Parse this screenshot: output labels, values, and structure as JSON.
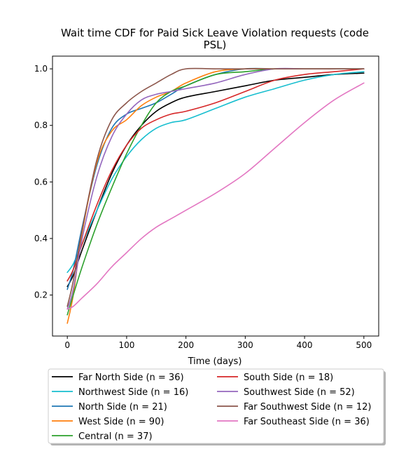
{
  "chart_data": {
    "type": "line",
    "title_line1": "Wait time CDF for Paid Sick Leave Violation  requests (code",
    "title_line2": "PSL)",
    "xlabel": "Time (days)",
    "ylabel": "",
    "xlim": [
      -25,
      525
    ],
    "ylim": [
      0.055,
      1.045
    ],
    "xticks": [
      0,
      100,
      200,
      300,
      400,
      500
    ],
    "yticks": [
      0.2,
      0.4,
      0.6,
      0.8,
      1.0
    ],
    "xtick_labels": [
      "0",
      "100",
      "200",
      "300",
      "400",
      "500"
    ],
    "ytick_labels": [
      "0.2",
      "0.4",
      "0.6",
      "0.8",
      "1.0"
    ],
    "grid": false,
    "legend_position": "bottom-center",
    "series": [
      {
        "name": "Far North Side (n = 36)",
        "color": "#000000",
        "x": [
          0,
          10,
          25,
          50,
          75,
          100,
          125,
          150,
          175,
          200,
          250,
          300,
          350,
          400,
          450,
          500
        ],
        "y": [
          0.23,
          0.27,
          0.36,
          0.5,
          0.63,
          0.73,
          0.8,
          0.85,
          0.88,
          0.9,
          0.92,
          0.94,
          0.96,
          0.97,
          0.98,
          0.985
        ]
      },
      {
        "name": "Northwest Side (n = 16)",
        "color": "#17becf",
        "x": [
          0,
          10,
          25,
          50,
          75,
          100,
          125,
          150,
          175,
          200,
          250,
          300,
          350,
          400,
          450,
          500
        ],
        "y": [
          0.28,
          0.31,
          0.38,
          0.5,
          0.61,
          0.69,
          0.75,
          0.79,
          0.81,
          0.82,
          0.86,
          0.9,
          0.93,
          0.96,
          0.98,
          0.99
        ]
      },
      {
        "name": "North Side (n = 21)",
        "color": "#1f77b4",
        "x": [
          0,
          10,
          25,
          50,
          75,
          100,
          125,
          150,
          175,
          200,
          250,
          300,
          350,
          400,
          450,
          500
        ],
        "y": [
          0.22,
          0.29,
          0.44,
          0.66,
          0.79,
          0.84,
          0.86,
          0.88,
          0.91,
          0.94,
          0.98,
          1.0,
          1.0,
          1.0,
          1.0,
          1.0
        ]
      },
      {
        "name": "West Side (n = 90)",
        "color": "#ff7f0e",
        "x": [
          0,
          10,
          25,
          50,
          75,
          100,
          125,
          150,
          175,
          200,
          250,
          300,
          350,
          400,
          450,
          500
        ],
        "y": [
          0.1,
          0.2,
          0.42,
          0.67,
          0.78,
          0.82,
          0.87,
          0.9,
          0.92,
          0.95,
          0.99,
          1.0,
          1.0,
          1.0,
          1.0,
          1.0
        ]
      },
      {
        "name": "Central (n = 37)",
        "color": "#2ca02c",
        "x": [
          0,
          10,
          25,
          50,
          75,
          100,
          125,
          150,
          175,
          200,
          250,
          300,
          350,
          400,
          450,
          500
        ],
        "y": [
          0.13,
          0.2,
          0.3,
          0.45,
          0.58,
          0.7,
          0.8,
          0.88,
          0.92,
          0.94,
          0.98,
          0.99,
          1.0,
          1.0,
          1.0,
          1.0
        ]
      },
      {
        "name": "South Side (n = 18)",
        "color": "#d62728",
        "x": [
          0,
          10,
          25,
          50,
          75,
          100,
          125,
          150,
          175,
          200,
          250,
          300,
          350,
          400,
          450,
          500
        ],
        "y": [
          0.25,
          0.29,
          0.38,
          0.52,
          0.64,
          0.73,
          0.79,
          0.82,
          0.84,
          0.85,
          0.88,
          0.92,
          0.96,
          0.98,
          0.99,
          1.0
        ]
      },
      {
        "name": "Southwest Side (n = 52)",
        "color": "#9467bd",
        "x": [
          0,
          10,
          25,
          50,
          75,
          100,
          125,
          150,
          175,
          200,
          250,
          300,
          350,
          400,
          450,
          500
        ],
        "y": [
          0.15,
          0.22,
          0.4,
          0.62,
          0.76,
          0.84,
          0.89,
          0.91,
          0.92,
          0.93,
          0.95,
          0.98,
          1.0,
          1.0,
          1.0,
          1.0
        ]
      },
      {
        "name": "Far Southwest Side (n = 12)",
        "color": "#8c564b",
        "x": [
          0,
          10,
          25,
          50,
          75,
          100,
          125,
          150,
          175,
          200,
          250,
          300,
          350,
          400,
          450,
          500
        ],
        "y": [
          0.16,
          0.25,
          0.43,
          0.68,
          0.82,
          0.88,
          0.92,
          0.95,
          0.98,
          1.0,
          1.0,
          1.0,
          1.0,
          1.0,
          1.0,
          1.0
        ]
      },
      {
        "name": "Far Southeast Side (n = 36)",
        "color": "#e377c2",
        "x": [
          0,
          10,
          25,
          50,
          75,
          100,
          125,
          150,
          175,
          200,
          250,
          300,
          350,
          400,
          450,
          500
        ],
        "y": [
          0.15,
          0.16,
          0.19,
          0.24,
          0.3,
          0.35,
          0.4,
          0.44,
          0.47,
          0.5,
          0.56,
          0.63,
          0.72,
          0.81,
          0.89,
          0.95
        ]
      }
    ]
  }
}
